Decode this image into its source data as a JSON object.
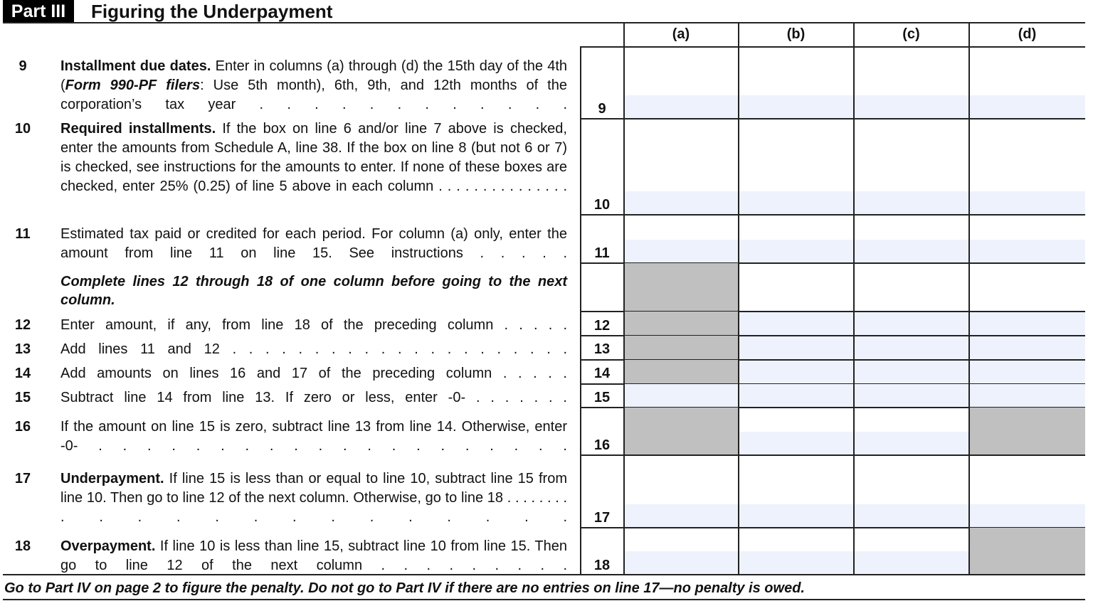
{
  "header": {
    "part": "Part III",
    "title": "Figuring the Underpayment"
  },
  "columns": [
    "(a)",
    "(b)",
    "(c)",
    "(d)"
  ],
  "lines": [
    {
      "num": "9",
      "lead": "Installment due dates.",
      "body": " Enter in columns (a) through (d) the 15th day of the 4th (",
      "italic": "Form 990-PF filers",
      "body2": ": Use 5th month), 6th, 9th, and 12th months of the corporation’s tax year",
      "dots": ". . . . . . . . . . . ."
    },
    {
      "num": "10",
      "lead": "Required installments.",
      "body": " If the box on line 6 and/or line 7 above is checked, enter the amounts from Schedule A, line 38. If the box on line 8 (but not 6 or 7) is checked, see instructions for the amounts to enter. If none of these boxes are checked, enter 25% (0.25) of line 5 above in each column",
      "dots": ". . . . . . . . . . . . . . ."
    },
    {
      "num": "11",
      "body": "Estimated tax paid or credited for each period. For column (a) only, enter the amount from line 11 on line 15. See instructions",
      "dots": ". . . . ."
    },
    {
      "instruction": "Complete lines 12 through 18 of one column before going to the next column."
    },
    {
      "num": "12",
      "body": "Enter amount, if any, from line 18 of the preceding column",
      "dots": ". . . . ."
    },
    {
      "num": "13",
      "body": "Add lines 11 and 12",
      "dots": ". . . . . . . . . . . . . . . . . . . . ."
    },
    {
      "num": "14",
      "body": "Add amounts on lines 16 and 17 of the preceding column",
      "dots": ". . . . ."
    },
    {
      "num": "15",
      "body": "Subtract line 14 from line 13. If zero or less, enter -0-",
      "dots": ". . . . . . ."
    },
    {
      "num": "16",
      "body": "If the amount on line 15 is zero, subtract line 13 from line 14. Otherwise, enter -0-",
      "dots": ". . . . . . . . . . . . . . . . . . . ."
    },
    {
      "num": "17",
      "lead": "Underpayment.",
      "body": " If line 15 is less than or equal to line 10, subtract line 15 from line 10. Then go to line 12 of the next column. Otherwise, go to line 18",
      "dots": ". . . . . . . . . . . . . . . . . . . . . ."
    },
    {
      "num": "18",
      "lead": "Overpayment.",
      "body": " If line 10 is less than line 15, subtract line 10 from line 15. Then go to line 12 of the next column",
      "dots": ". . . . . . . . ."
    }
  ],
  "footer": "Go to Part IV on page 2 to figure the penalty. Do not go to Part IV if there are no entries on line 17—no penalty is owed.",
  "colors": {
    "field": "#eef2fc",
    "shaded": "#c0c0c0",
    "rule": "#222222"
  }
}
